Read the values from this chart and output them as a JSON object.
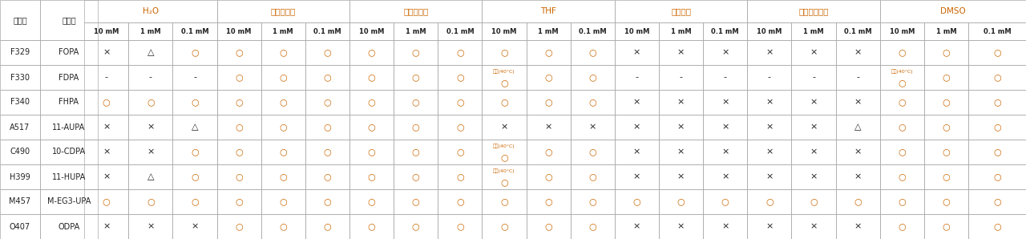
{
  "col_groups": [
    {
      "label": "H₂O",
      "span": 3
    },
    {
      "label": "メタノール",
      "span": 3
    },
    {
      "label": "エタノール",
      "span": 3
    },
    {
      "label": "THF",
      "span": 3
    },
    {
      "label": "キシレン",
      "span": 3
    },
    {
      "label": "クロロホルム",
      "span": 3
    },
    {
      "label": "DMSO",
      "span": 3
    }
  ],
  "sub_cols": [
    "10 mM",
    "1 mM",
    "0.1 mM"
  ],
  "row_headers": [
    "コード",
    "製品名"
  ],
  "rows": [
    {
      "code": "F329",
      "name": "FOPA",
      "cells": [
        "×",
        "△",
        "○",
        "○",
        "○",
        "○",
        "○",
        "○",
        "○",
        "○",
        "○",
        "○",
        "×",
        "×",
        "×",
        "×",
        "×",
        "×",
        "○",
        "○",
        "○"
      ]
    },
    {
      "code": "F330",
      "name": "FDPA",
      "cells": [
        "-",
        "-",
        "-",
        "○",
        "○",
        "○",
        "○",
        "○",
        "○",
        "加温(40°C)\n○",
        "○",
        "○",
        "-",
        "-",
        "-",
        "-",
        "-",
        "-",
        "加温(40°C)\n○",
        "○",
        "○"
      ]
    },
    {
      "code": "F340",
      "name": "FHPA",
      "cells": [
        "○",
        "○",
        "○",
        "○",
        "○",
        "○",
        "○",
        "○",
        "○",
        "○",
        "○",
        "○",
        "×",
        "×",
        "×",
        "×",
        "×",
        "×",
        "○",
        "○",
        "○"
      ]
    },
    {
      "code": "A517",
      "name": "11-AUPA",
      "cells": [
        "×",
        "×",
        "△",
        "○",
        "○",
        "○",
        "○",
        "○",
        "○",
        "×",
        "×",
        "×",
        "×",
        "×",
        "×",
        "×",
        "×",
        "△",
        "○",
        "○",
        "○"
      ]
    },
    {
      "code": "C490",
      "name": "10-CDPA",
      "cells": [
        "×",
        "×",
        "○",
        "○",
        "○",
        "○",
        "○",
        "○",
        "○",
        "加温(40°C)\n○",
        "○",
        "○",
        "×",
        "×",
        "×",
        "×",
        "×",
        "×",
        "○",
        "○",
        "○"
      ]
    },
    {
      "code": "H399",
      "name": "11-HUPA",
      "cells": [
        "×",
        "△",
        "○",
        "○",
        "○",
        "○",
        "○",
        "○",
        "○",
        "加温(40°C)\n○",
        "○",
        "○",
        "×",
        "×",
        "×",
        "×",
        "×",
        "×",
        "○",
        "○",
        "○"
      ]
    },
    {
      "code": "M457",
      "name": "M-EG3-UPA",
      "cells": [
        "○",
        "○",
        "○",
        "○",
        "○",
        "○",
        "○",
        "○",
        "○",
        "○",
        "○",
        "○",
        "○",
        "○",
        "○",
        "○",
        "○",
        "○",
        "○",
        "○",
        "○"
      ]
    },
    {
      "code": "O407",
      "name": "ODPA",
      "cells": [
        "×",
        "×",
        "×",
        "○",
        "○",
        "○",
        "○",
        "○",
        "○",
        "○",
        "○",
        "○",
        "×",
        "×",
        "×",
        "×",
        "×",
        "×",
        "○",
        "○",
        "○"
      ]
    }
  ],
  "border_color": "#aaaaaa",
  "text_color": "#222222",
  "circle_color": "#cc6600",
  "cross_color": "#222222",
  "triangle_color": "#222222",
  "dash_color": "#222222",
  "annotation_color": "#cc6600",
  "group_header_color": "#cc6600",
  "fig_width": 12.8,
  "fig_height": 2.98,
  "dpi": 100
}
